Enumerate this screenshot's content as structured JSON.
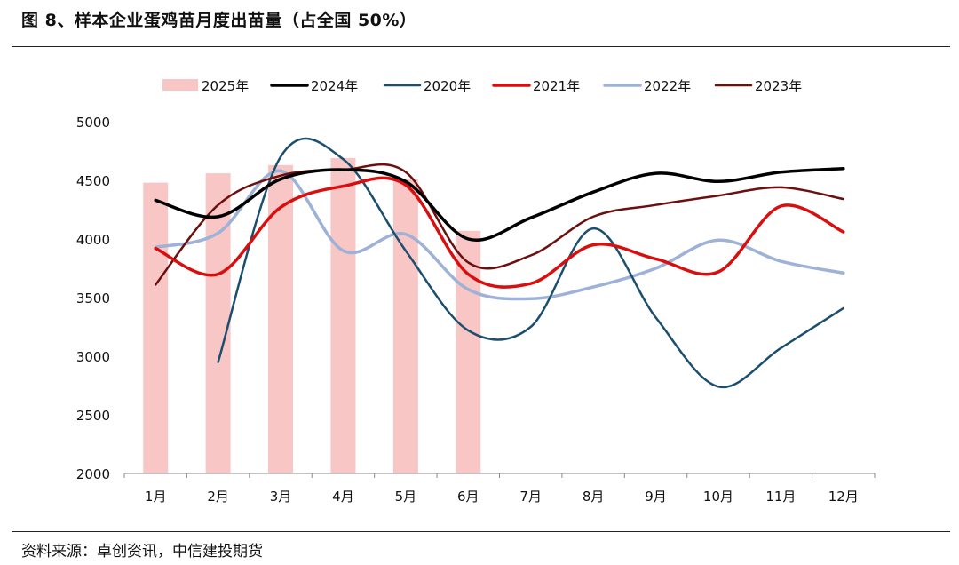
{
  "header": {
    "title": "图 8、样本企业蛋鸡苗月度出苗量（占全国 50%）"
  },
  "footer": {
    "source": "资料来源：卓创资讯，中信建投期货"
  },
  "colors": {
    "bar_2025": "#f8c6c4",
    "line_2024": "#000000",
    "line_2020": "#1c4e70",
    "line_2021": "#d90e0e",
    "line_2022": "#9db2d6",
    "line_2023": "#6b0f0f"
  },
  "chart_data": {
    "type": "bar+line",
    "categories": [
      "1月",
      "2月",
      "3月",
      "4月",
      "5月",
      "6月",
      "7月",
      "8月",
      "9月",
      "10月",
      "11月",
      "12月"
    ],
    "ylim": [
      2000,
      5000
    ],
    "yticks": [
      2000,
      2500,
      3000,
      3500,
      4000,
      4500,
      5000
    ],
    "legend_position": "top",
    "grid": false,
    "bars": {
      "name": "2025年",
      "values": [
        4480,
        4560,
        4630,
        4690,
        4510,
        4070
      ]
    },
    "series": [
      {
        "name": "2024年",
        "values": [
          4330,
          4190,
          4510,
          4590,
          4490,
          4000,
          4180,
          4400,
          4560,
          4490,
          4570,
          4600
        ]
      },
      {
        "name": "2020年",
        "values": [
          null,
          2950,
          4700,
          4680,
          3900,
          3220,
          3250,
          4090,
          3330,
          2740,
          3070,
          3410
        ]
      },
      {
        "name": "2021年",
        "values": [
          3920,
          3700,
          4270,
          4450,
          4460,
          3700,
          3620,
          3950,
          3830,
          3720,
          4280,
          4060
        ]
      },
      {
        "name": "2022年",
        "values": [
          3930,
          4050,
          4580,
          3900,
          4040,
          3570,
          3490,
          3590,
          3750,
          3990,
          3810,
          3710
        ]
      },
      {
        "name": "2023年",
        "values": [
          3610,
          4290,
          4540,
          4590,
          4570,
          3800,
          3860,
          4190,
          4290,
          4370,
          4440,
          4340
        ]
      }
    ]
  }
}
